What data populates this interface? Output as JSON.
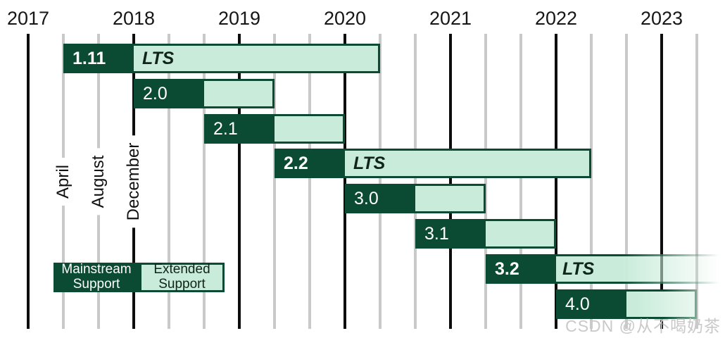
{
  "watermark": {
    "text": "CSDN @从不喝奶茶",
    "color": "#c9c9c9"
  },
  "legend": {
    "mainstream_label": "Mainstream Support",
    "extended_label": "Extended Support"
  },
  "colors": {
    "mainstream_fill": "#0C4B33",
    "extended_fill": "#C9ECDA",
    "extended_border": "#0C4B33",
    "grid_year_line": "#0D0D0D",
    "grid_month_line": "#C9C9C9",
    "axis_text": "#161616",
    "version_text": "#FFFFFF",
    "lts_text": "#0F241A"
  },
  "chart_data": {
    "type": "gantt",
    "title": "",
    "lts_label": "LTS",
    "x_axis": {
      "years": [
        "2017",
        "2018",
        "2019",
        "2020",
        "2021",
        "2022",
        "2023"
      ],
      "month_gridlines": [
        "April",
        "August",
        "December"
      ],
      "year_line_at_month": "December of previous year",
      "grid": true
    },
    "legend_position": "bottom-left",
    "releases": [
      {
        "version": "1.11",
        "lts": true,
        "released": "2017-04",
        "mainstream_until": "2017-12",
        "extended_until": "2020-04"
      },
      {
        "version": "2.0",
        "lts": false,
        "released": "2017-12",
        "mainstream_until": "2018-08",
        "extended_until": "2019-04"
      },
      {
        "version": "2.1",
        "lts": false,
        "released": "2018-08",
        "mainstream_until": "2019-04",
        "extended_until": "2019-12"
      },
      {
        "version": "2.2",
        "lts": true,
        "released": "2019-04",
        "mainstream_until": "2019-12",
        "extended_until": "2022-04"
      },
      {
        "version": "3.0",
        "lts": false,
        "released": "2019-12",
        "mainstream_until": "2020-08",
        "extended_until": "2021-04"
      },
      {
        "version": "3.1",
        "lts": false,
        "released": "2020-08",
        "mainstream_until": "2021-04",
        "extended_until": "2021-12"
      },
      {
        "version": "3.2",
        "lts": true,
        "released": "2021-04",
        "mainstream_until": "2021-12",
        "extended_until": null,
        "fades_beyond_chart": true
      },
      {
        "version": "4.0",
        "lts": false,
        "released": "2021-12",
        "mainstream_until": "2022-08",
        "extended_until": "2023-04",
        "fade_right_edge": true
      }
    ]
  }
}
